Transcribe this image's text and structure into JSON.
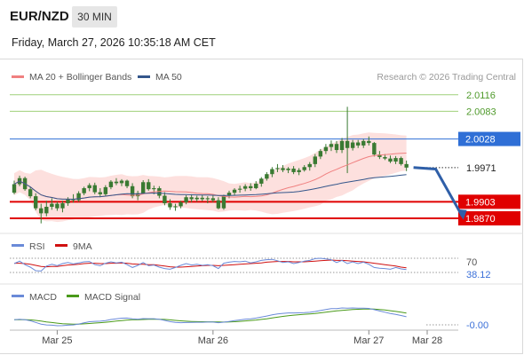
{
  "header": {
    "symbol": "EUR/NZD",
    "timeframe": "30 MIN",
    "datetime": "Friday, March 27, 2026 10:35:18 AM CET"
  },
  "legend": {
    "ma20": "MA 20 + Bollinger Bands",
    "ma50": "MA 50",
    "credit": "Research © 2026 Trading Central"
  },
  "colors": {
    "candle": "#3a7a32",
    "bollinger_fill": "#fde0de",
    "ma20": "#f08080",
    "ma50": "#34568b",
    "resistance": "#9fd07a",
    "pivot": "#2f6fd6",
    "support": "#e00000",
    "arrow": "#2f5fa8",
    "rsi": "#6a8ad8",
    "rsi_ma": "#d01010",
    "macd": "#6a8ad8",
    "macd_signal": "#4a9a1a"
  },
  "chart_data": [
    {
      "type": "candlestick",
      "title": "EUR/NZD",
      "x_ticks": [
        "Mar 25",
        "Mar 26",
        "Mar 27",
        "Mar 28"
      ],
      "ylim": [
        1.984,
        2.0135
      ],
      "levels": [
        {
          "label": "2.0116",
          "value": 2.0116,
          "kind": "resistance"
        },
        {
          "label": "2.0083",
          "value": 2.0083,
          "kind": "resistance"
        },
        {
          "label": "2.0028",
          "value": 2.0028,
          "kind": "pivot"
        },
        {
          "label": "1.9971",
          "value": 1.9971,
          "kind": "last"
        },
        {
          "label": "1.9903",
          "value": 1.9903,
          "kind": "support"
        },
        {
          "label": "1.9870",
          "value": 1.987,
          "kind": "support"
        }
      ],
      "forecast": [
        [
          1.9971,
          0
        ],
        [
          1.9968,
          5
        ],
        [
          1.9874,
          11
        ]
      ],
      "candles": [
        [
          1.9921,
          1.9945,
          1.9918,
          1.9938
        ],
        [
          1.9938,
          1.9955,
          1.9934,
          1.995
        ],
        [
          1.995,
          1.9953,
          1.9925,
          1.9928
        ],
        [
          1.9928,
          1.9932,
          1.991,
          1.9914
        ],
        [
          1.9914,
          1.992,
          1.9886,
          1.989
        ],
        [
          1.989,
          1.9899,
          1.986,
          1.988
        ],
        [
          1.988,
          1.9905,
          1.9874,
          1.9893
        ],
        [
          1.9893,
          1.991,
          1.9887,
          1.9899
        ],
        [
          1.9899,
          1.9903,
          1.9885,
          1.989
        ],
        [
          1.989,
          1.9905,
          1.9882,
          1.99
        ],
        [
          1.99,
          1.9912,
          1.9895,
          1.9909
        ],
        [
          1.9909,
          1.9918,
          1.9901,
          1.9906
        ],
        [
          1.9906,
          1.9924,
          1.9903,
          1.992
        ],
        [
          1.992,
          1.9933,
          1.9916,
          1.993
        ],
        [
          1.993,
          1.994,
          1.9924,
          1.9936
        ],
        [
          1.9936,
          1.9941,
          1.9918,
          1.9922
        ],
        [
          1.9922,
          1.993,
          1.9912,
          1.9918
        ],
        [
          1.9918,
          1.9936,
          1.9915,
          1.9932
        ],
        [
          1.9932,
          1.9946,
          1.9928,
          1.9943
        ],
        [
          1.9943,
          1.995,
          1.9936,
          1.994
        ],
        [
          1.994,
          1.9948,
          1.9934,
          1.9945
        ],
        [
          1.9945,
          1.9947,
          1.993,
          1.9934
        ],
        [
          1.9934,
          1.994,
          1.991,
          1.9914
        ],
        [
          1.9914,
          1.9925,
          1.9906,
          1.992
        ],
        [
          1.992,
          1.9946,
          1.9918,
          1.9942
        ],
        [
          1.9942,
          1.9948,
          1.9925,
          1.9928
        ],
        [
          1.9928,
          1.9935,
          1.9918,
          1.993
        ],
        [
          1.993,
          1.9934,
          1.991,
          1.9915
        ],
        [
          1.9915,
          1.9922,
          1.9896,
          1.99
        ],
        [
          1.99,
          1.9908,
          1.9887,
          1.9892
        ],
        [
          1.9892,
          1.9899,
          1.9885,
          1.9894
        ],
        [
          1.9894,
          1.9905,
          1.989,
          1.9902
        ],
        [
          1.9902,
          1.9916,
          1.9898,
          1.9912
        ],
        [
          1.9912,
          1.9918,
          1.9902,
          1.9908
        ],
        [
          1.9908,
          1.9915,
          1.9903,
          1.9911
        ],
        [
          1.9911,
          1.9917,
          1.9904,
          1.9908
        ],
        [
          1.9908,
          1.9914,
          1.99,
          1.991
        ],
        [
          1.991,
          1.9915,
          1.9902,
          1.9906
        ],
        [
          1.9906,
          1.9912,
          1.9888,
          1.989
        ],
        [
          1.989,
          1.9917,
          1.9887,
          1.9915
        ],
        [
          1.9915,
          1.9925,
          1.991,
          1.9921
        ],
        [
          1.9921,
          1.993,
          1.9915,
          1.9927
        ],
        [
          1.9927,
          1.9935,
          1.9921,
          1.9929
        ],
        [
          1.9929,
          1.9938,
          1.9924,
          1.9934
        ],
        [
          1.9934,
          1.994,
          1.9925,
          1.993
        ],
        [
          1.993,
          1.9944,
          1.9928,
          1.9939
        ],
        [
          1.9939,
          1.9952,
          1.9933,
          1.9949
        ],
        [
          1.9949,
          1.9962,
          1.9945,
          1.9958
        ],
        [
          1.9958,
          1.9972,
          1.9952,
          1.9968
        ],
        [
          1.9968,
          1.9978,
          1.9962,
          1.997
        ],
        [
          1.997,
          1.9976,
          1.9962,
          1.9966
        ],
        [
          1.9966,
          1.9972,
          1.996,
          1.9969
        ],
        [
          1.9969,
          1.9974,
          1.9958,
          1.9962
        ],
        [
          1.9962,
          1.997,
          1.9956,
          1.9966
        ],
        [
          1.9966,
          1.9976,
          1.9963,
          1.9972
        ],
        [
          1.9972,
          1.9982,
          1.9965,
          1.9978
        ],
        [
          1.9978,
          1.9998,
          1.9972,
          1.9993
        ],
        [
          1.9993,
          2.0008,
          1.9988,
          2.0004
        ],
        [
          2.0004,
          2.0018,
          1.9998,
          2.0012
        ],
        [
          2.0012,
          2.0025,
          2.0004,
          2.0018
        ],
        [
          2.0018,
          2.0024,
          2.0,
          2.0006
        ],
        [
          2.0006,
          2.003,
          2.0,
          2.0024
        ],
        [
          2.0024,
          2.0092,
          1.996,
          2.001
        ],
        [
          2.001,
          2.0026,
          2.0005,
          2.0021
        ],
        [
          2.0021,
          2.0026,
          2.001,
          2.0015
        ],
        [
          2.0015,
          2.0028,
          2.001,
          2.0024
        ],
        [
          2.0024,
          2.0033,
          2.0015,
          2.002
        ],
        [
          2.002,
          2.0022,
          1.9993,
          1.9997
        ],
        [
          1.9997,
          2.0004,
          1.9988,
          1.9992
        ],
        [
          1.9992,
          1.9998,
          1.9986,
          1.9989
        ],
        [
          1.9989,
          1.9995,
          1.998,
          1.9983
        ],
        [
          1.9983,
          1.9994,
          1.9978,
          1.999
        ],
        [
          1.999,
          1.9993,
          1.9975,
          1.9978
        ],
        [
          1.9978,
          1.9985,
          1.9964,
          1.9971
        ]
      ]
    },
    {
      "type": "line",
      "title": "RSI",
      "series": [
        {
          "name": "RSI"
        },
        {
          "name": "9MA"
        }
      ],
      "y_ticks": [
        "70"
      ],
      "last_label": "38.12",
      "rsi": [
        55,
        62,
        52,
        45,
        35,
        34,
        48,
        53,
        49,
        55,
        58,
        54,
        57,
        60,
        61,
        52,
        49,
        56,
        60,
        57,
        59,
        52,
        44,
        50,
        58,
        49,
        51,
        45,
        41,
        39,
        44,
        50,
        55,
        51,
        53,
        50,
        52,
        49,
        41,
        56,
        59,
        61,
        60,
        62,
        57,
        60,
        64,
        66,
        67,
        63,
        58,
        60,
        55,
        58,
        62,
        64,
        69,
        70,
        68,
        66,
        58,
        64,
        55,
        60,
        55,
        59,
        53,
        44,
        42,
        41,
        39,
        44,
        40,
        38.12
      ],
      "rsi_ma": [
        56,
        56,
        55,
        53,
        50,
        47,
        46,
        47,
        47,
        49,
        51,
        52,
        53,
        55,
        56,
        56,
        55,
        55,
        56,
        56,
        57,
        56,
        54,
        53,
        53,
        52,
        52,
        50,
        48,
        46,
        45,
        45,
        46,
        47,
        48,
        49,
        50,
        50,
        49,
        50,
        51,
        52,
        53,
        54,
        55,
        56,
        57,
        59,
        60,
        61,
        61,
        61,
        60,
        60,
        60,
        61,
        62,
        63,
        64,
        65,
        64,
        64,
        63,
        62,
        61,
        60,
        58,
        56,
        54,
        52,
        50,
        48,
        45,
        43
      ]
    },
    {
      "type": "line",
      "title": "MACD",
      "series": [
        {
          "name": "MACD"
        },
        {
          "name": "MACD Signal"
        }
      ],
      "last_label": "-0.00"
    }
  ]
}
